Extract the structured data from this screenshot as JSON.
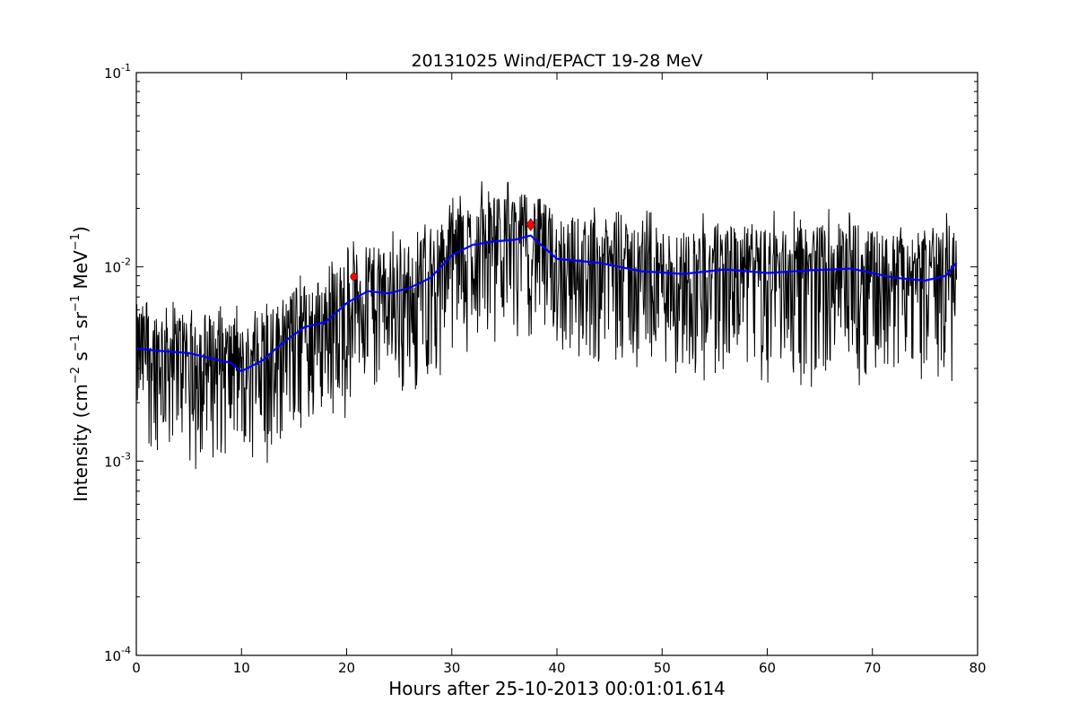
{
  "chart_data": {
    "type": "line",
    "title": "20131025 Wind/EPACT 19-28 MeV",
    "xlabel": "Hours after 25-10-2013 00:01:01.614",
    "ylabel_parts": [
      "Intensity (cm",
      "−2",
      " s",
      "−1",
      " sr",
      "−1",
      " MeV",
      "−1",
      ")"
    ],
    "xlim": [
      0,
      80
    ],
    "ylim": [
      0.0001,
      0.1
    ],
    "yscale": "log",
    "grid": false,
    "x_ticks": [
      0,
      10,
      20,
      30,
      40,
      50,
      60,
      70,
      80
    ],
    "x_tick_labels": [
      "0",
      "10",
      "20",
      "30",
      "40",
      "50",
      "60",
      "70",
      "80"
    ],
    "y_ticks": [
      {
        "value": 0.1,
        "base": "10",
        "exp": "-1"
      },
      {
        "value": 0.01,
        "base": "10",
        "exp": "-2"
      },
      {
        "value": 0.001,
        "base": "10",
        "exp": "-3"
      },
      {
        "value": 0.0001,
        "base": "10",
        "exp": "-4"
      }
    ],
    "series": [
      {
        "role": "raw intensity",
        "color": "#000000",
        "style": "line",
        "profile": {
          "x": [
            0,
            2,
            5,
            9,
            10,
            12,
            14,
            16,
            18,
            20,
            22,
            24,
            26,
            28,
            30,
            32,
            34,
            36,
            37.5,
            40,
            44,
            48,
            52,
            56,
            60,
            64,
            68,
            72,
            75,
            77,
            78
          ],
          "y": [
            0.0038,
            0.0037,
            0.0036,
            0.0032,
            0.0029,
            0.0033,
            0.0041,
            0.0049,
            0.0052,
            0.0065,
            0.0075,
            0.0073,
            0.0078,
            0.0088,
            0.0115,
            0.013,
            0.0135,
            0.0138,
            0.0145,
            0.011,
            0.0105,
            0.0095,
            0.0092,
            0.0097,
            0.0093,
            0.0096,
            0.0098,
            0.0088,
            0.0085,
            0.009,
            0.0105
          ]
        },
        "min_floor": 0.00088
      },
      {
        "role": "smoothed intensity",
        "color": "#0000ff",
        "style": "line",
        "x": [
          0,
          2,
          5,
          9,
          10,
          12,
          14,
          16,
          18,
          20,
          22,
          24,
          26,
          28,
          30,
          32,
          34,
          36,
          37.5,
          40,
          44,
          48,
          52,
          56,
          60,
          64,
          68,
          72,
          75,
          77,
          78
        ],
        "y": [
          0.0038,
          0.0037,
          0.0036,
          0.0032,
          0.0029,
          0.0033,
          0.0041,
          0.0049,
          0.0052,
          0.0065,
          0.0075,
          0.0073,
          0.0078,
          0.0088,
          0.0115,
          0.013,
          0.0135,
          0.0138,
          0.0145,
          0.011,
          0.0105,
          0.0095,
          0.0092,
          0.0097,
          0.0093,
          0.0096,
          0.0098,
          0.0088,
          0.0085,
          0.009,
          0.0105
        ]
      }
    ],
    "markers": [
      {
        "x": 20.7,
        "y": 0.0089,
        "color": "#ff0000",
        "shape": "circle"
      },
      {
        "x": 37.5,
        "y": 0.0165,
        "color": "#ff0000",
        "shape": "diamond"
      }
    ]
  }
}
